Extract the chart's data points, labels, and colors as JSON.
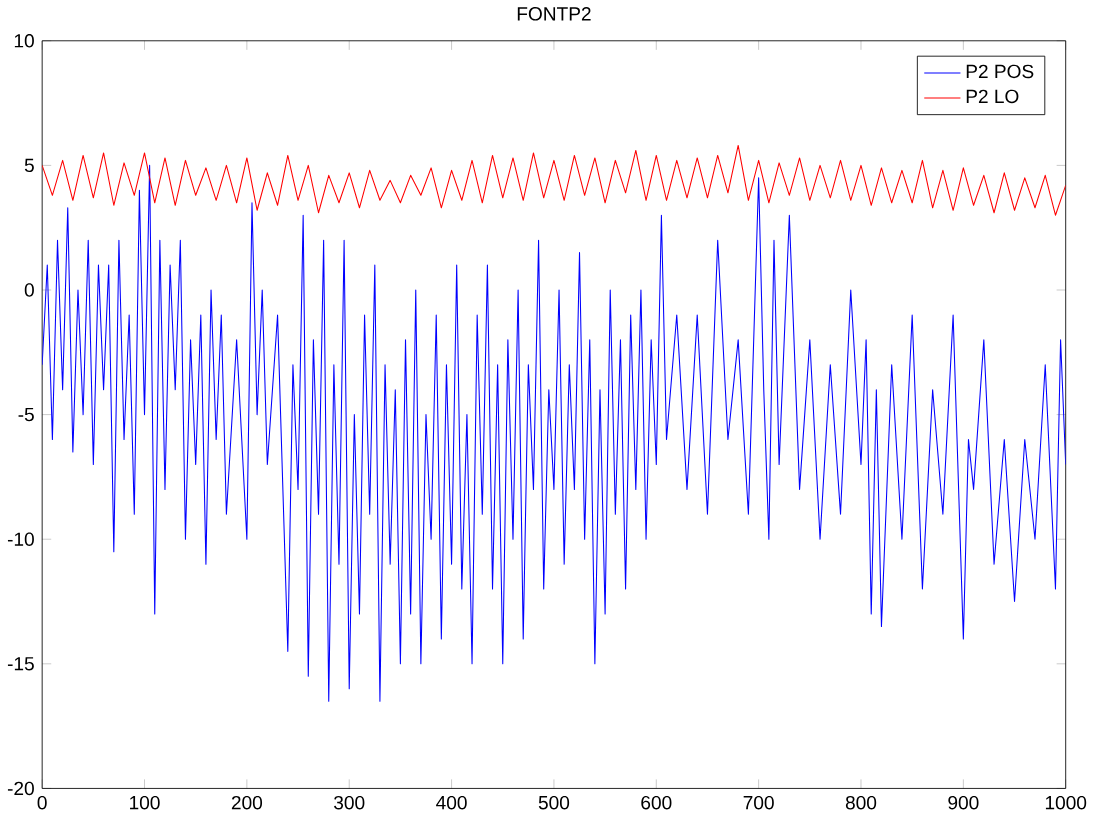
{
  "chart_data": {
    "type": "line",
    "title": "FONTP2",
    "legend": "top right",
    "grid": false,
    "xlim": [
      0,
      1000
    ],
    "ylim": [
      -20,
      10
    ],
    "xticks": [
      0,
      100,
      200,
      300,
      400,
      500,
      600,
      700,
      800,
      900,
      1000
    ],
    "yticks": [
      -20,
      -15,
      -10,
      -5,
      0,
      5,
      10
    ],
    "series": [
      {
        "name": "P2 POS",
        "color": "#0000ff",
        "x": [
          0,
          5,
          10,
          15,
          20,
          25,
          30,
          35,
          40,
          45,
          50,
          55,
          60,
          65,
          70,
          75,
          80,
          85,
          90,
          95,
          100,
          105,
          110,
          115,
          120,
          125,
          130,
          135,
          140,
          145,
          150,
          155,
          160,
          165,
          170,
          175,
          180,
          190,
          200,
          205,
          210,
          215,
          220,
          230,
          240,
          245,
          250,
          255,
          260,
          265,
          270,
          275,
          280,
          285,
          290,
          295,
          300,
          305,
          310,
          315,
          320,
          325,
          330,
          335,
          340,
          345,
          350,
          355,
          360,
          365,
          370,
          375,
          380,
          385,
          390,
          395,
          400,
          405,
          410,
          415,
          420,
          425,
          430,
          435,
          440,
          445,
          450,
          455,
          460,
          465,
          470,
          475,
          480,
          485,
          490,
          495,
          500,
          505,
          510,
          515,
          520,
          525,
          530,
          535,
          540,
          545,
          550,
          555,
          560,
          565,
          570,
          575,
          580,
          585,
          590,
          595,
          600,
          605,
          610,
          620,
          630,
          640,
          650,
          660,
          670,
          680,
          690,
          700,
          705,
          710,
          715,
          720,
          730,
          740,
          750,
          760,
          770,
          780,
          790,
          800,
          805,
          810,
          815,
          820,
          830,
          840,
          850,
          860,
          870,
          880,
          890,
          900,
          905,
          910,
          920,
          930,
          940,
          950,
          960,
          970,
          980,
          990,
          995,
          1000
        ],
        "values": [
          -3,
          1,
          -6,
          2,
          -4,
          3.3,
          -6.5,
          0,
          -5,
          2,
          -7,
          1,
          -4,
          1,
          -10.5,
          2,
          -6,
          -1,
          -9,
          4,
          -5,
          5,
          -13,
          2,
          -8,
          1,
          -4,
          2,
          -10,
          -2,
          -7,
          -1,
          -11,
          0,
          -6,
          -1,
          -9,
          -2,
          -10,
          3.5,
          -5,
          0,
          -7,
          -1,
          -14.5,
          -3,
          -8,
          3,
          -15.5,
          -2,
          -9,
          2,
          -16.5,
          -3,
          -11,
          2,
          -16,
          -5,
          -13,
          -1,
          -9,
          1,
          -16.5,
          -3,
          -11,
          -4,
          -15,
          -2,
          -13,
          0,
          -15,
          -5,
          -10,
          -1,
          -14,
          -3,
          -11,
          1,
          -12,
          -5,
          -15,
          -1,
          -9,
          1,
          -12,
          -3,
          -15,
          -2,
          -10,
          0,
          -14,
          -3,
          -8,
          2,
          -12,
          -4,
          -8,
          0,
          -11,
          -3,
          -8,
          1.5,
          -10,
          -2,
          -15,
          -4,
          -13,
          0,
          -9,
          -2,
          -12,
          -1,
          -8,
          0,
          -10,
          -2,
          -7,
          3,
          -6,
          -1,
          -8,
          -1,
          -9,
          2,
          -6,
          -2,
          -9,
          4.5,
          -4,
          -10,
          2,
          -7,
          3,
          -8,
          -2,
          -10,
          -3,
          -9,
          0,
          -7,
          -2,
          -13,
          -4,
          -13.5,
          -3,
          -10,
          -1,
          -12,
          -4,
          -9,
          -1,
          -14,
          -6,
          -8,
          -2,
          -11,
          -6,
          -12.5,
          -6,
          -10,
          -3,
          -12,
          -2,
          -7
        ]
      },
      {
        "name": "P2 LO",
        "color": "#ff0000",
        "x": [
          0,
          10,
          20,
          30,
          40,
          50,
          60,
          70,
          80,
          90,
          100,
          110,
          120,
          130,
          140,
          150,
          160,
          170,
          180,
          190,
          200,
          210,
          220,
          230,
          240,
          250,
          260,
          270,
          280,
          290,
          300,
          310,
          320,
          330,
          340,
          350,
          360,
          370,
          380,
          390,
          400,
          410,
          420,
          430,
          440,
          450,
          460,
          470,
          480,
          490,
          500,
          510,
          520,
          530,
          540,
          550,
          560,
          570,
          580,
          590,
          600,
          610,
          620,
          630,
          640,
          650,
          660,
          670,
          680,
          690,
          700,
          710,
          720,
          730,
          740,
          750,
          760,
          770,
          780,
          790,
          800,
          810,
          820,
          830,
          840,
          850,
          860,
          870,
          880,
          890,
          900,
          910,
          920,
          930,
          940,
          950,
          960,
          970,
          980,
          990,
          1000
        ],
        "values": [
          5,
          3.8,
          5.2,
          3.6,
          5.4,
          3.7,
          5.5,
          3.4,
          5.1,
          3.8,
          5.5,
          3.5,
          5.3,
          3.4,
          5.2,
          3.8,
          4.9,
          3.6,
          5,
          3.5,
          5.3,
          3.2,
          4.7,
          3.4,
          5.4,
          3.6,
          5,
          3.1,
          4.6,
          3.5,
          4.7,
          3.3,
          4.8,
          3.6,
          4.4,
          3.5,
          4.6,
          3.8,
          4.9,
          3.3,
          4.8,
          3.6,
          5.2,
          3.5,
          5.4,
          3.7,
          5.3,
          3.6,
          5.5,
          3.7,
          5.2,
          3.6,
          5.4,
          3.8,
          5.3,
          3.5,
          5.2,
          3.9,
          5.6,
          3.6,
          5.4,
          3.6,
          5.2,
          3.7,
          5.3,
          3.7,
          5.4,
          3.9,
          5.8,
          3.6,
          5.2,
          3.5,
          5.1,
          3.8,
          5.3,
          3.6,
          5,
          3.7,
          5.2,
          3.6,
          5,
          3.4,
          4.9,
          3.5,
          4.8,
          3.5,
          5.2,
          3.3,
          4.8,
          3.2,
          4.9,
          3.4,
          4.6,
          3.1,
          4.7,
          3.2,
          4.5,
          3.3,
          4.6,
          3,
          4.2
        ]
      }
    ]
  }
}
